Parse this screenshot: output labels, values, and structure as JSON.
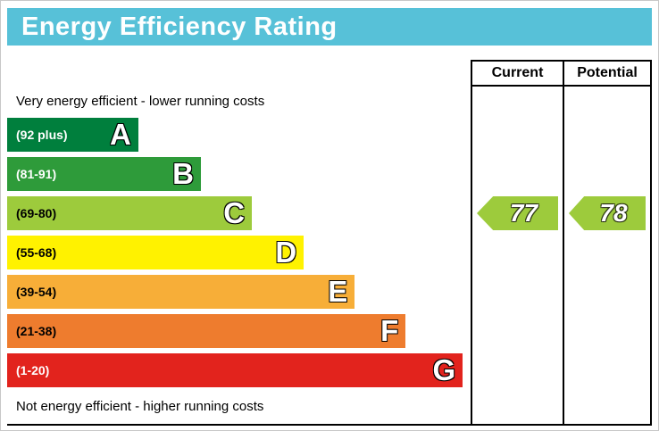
{
  "title": "Energy Efficiency Rating",
  "colors": {
    "title_bg": "#57c1d8",
    "title_text": "#ffffff",
    "grid": "#000000",
    "arrow_green": "#9dcb3c"
  },
  "table": {
    "current_header": "Current",
    "potential_header": "Potential"
  },
  "notes": {
    "top": "Very energy efficient - lower running costs",
    "bottom": "Not energy efficient - higher running costs"
  },
  "bands": [
    {
      "letter": "A",
      "range": "(92 plus)",
      "color": "#007f3d",
      "text_color": "#ffffff",
      "width_pct": 28.3
    },
    {
      "letter": "B",
      "range": "(81-91)",
      "color": "#2e9b3a",
      "text_color": "#ffffff",
      "width_pct": 41.8
    },
    {
      "letter": "C",
      "range": "(69-80)",
      "color": "#9dcb3c",
      "text_color": "#000000",
      "width_pct": 52.8
    },
    {
      "letter": "D",
      "range": "(55-68)",
      "color": "#fff200",
      "text_color": "#000000",
      "width_pct": 64.0
    },
    {
      "letter": "E",
      "range": "(39-54)",
      "color": "#f7ae38",
      "text_color": "#000000",
      "width_pct": 75.0
    },
    {
      "letter": "F",
      "range": "(21-38)",
      "color": "#ee7c2e",
      "text_color": "#000000",
      "width_pct": 86.0
    },
    {
      "letter": "G",
      "range": "(1-20)",
      "color": "#e2231d",
      "text_color": "#ffffff",
      "width_pct": 98.3
    }
  ],
  "current": {
    "value": "77",
    "band": "C",
    "band_index": 2,
    "color": "#9dcb3c"
  },
  "potential": {
    "value": "78",
    "band": "C",
    "band_index": 2,
    "color": "#9dcb3c"
  },
  "chart_data": {
    "type": "bar",
    "orientation": "horizontal",
    "title": "Energy Efficiency Rating",
    "categories": [
      "A",
      "B",
      "C",
      "D",
      "E",
      "F",
      "G"
    ],
    "ranges": [
      "92 plus",
      "81-91",
      "69-80",
      "55-68",
      "39-54",
      "21-38",
      "1-20"
    ],
    "bar_relative_widths_pct": [
      28.3,
      41.8,
      52.8,
      64.0,
      75.0,
      86.0,
      98.3
    ],
    "colors": [
      "#007f3d",
      "#2e9b3a",
      "#9dcb3c",
      "#fff200",
      "#f7ae38",
      "#ee7c2e",
      "#e2231d"
    ],
    "markers": [
      {
        "name": "Current",
        "value": 77,
        "band": "C"
      },
      {
        "name": "Potential",
        "value": 78,
        "band": "C"
      }
    ],
    "annotations": [
      "Very energy efficient - lower running costs",
      "Not energy efficient - higher running costs"
    ],
    "legend_position": "none",
    "grid": false
  }
}
